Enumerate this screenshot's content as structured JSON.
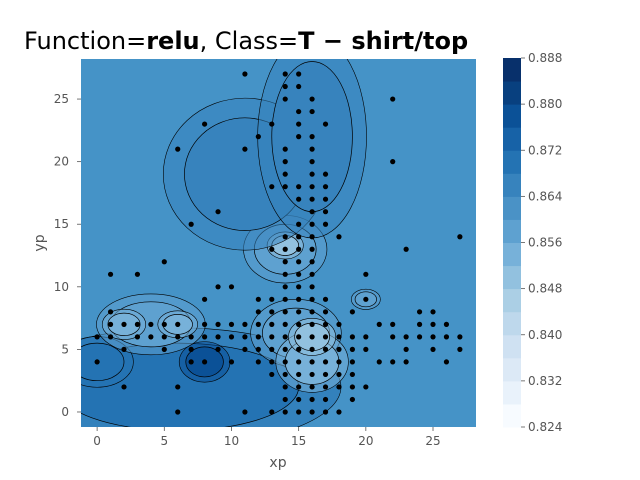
{
  "chart_data": {
    "type": "scatter",
    "title_prefix": "Function=",
    "title_function": "relu",
    "title_mid": ", Class=",
    "title_class": "T − shirt/top",
    "xlabel": "xp",
    "ylabel": "yp",
    "xlim": [
      -1.2,
      28.2
    ],
    "ylim": [
      28.2,
      -1.2
    ],
    "y_inverted": true,
    "x_ticks": [
      0,
      5,
      10,
      15,
      20,
      25
    ],
    "y_ticks": [
      0,
      5,
      10,
      15,
      20,
      25
    ],
    "grid": false,
    "background_fill": "#4593c7",
    "colorbar": {
      "min": 0.824,
      "max": 0.888,
      "ticks": [
        "0.824",
        "0.832",
        "0.840",
        "0.848",
        "0.856",
        "0.864",
        "0.872",
        "0.880",
        "0.888"
      ],
      "levels": [
        "#f7fbff",
        "#e9f2fb",
        "#dce9f6",
        "#cfe1f2",
        "#bed8ec",
        "#abcfe5",
        "#92c1df",
        "#77b1d9",
        "#5ea1d0",
        "#4a92c6",
        "#3783bd",
        "#2473b3",
        "#1762a7",
        "#0b5197",
        "#08407f",
        "#08306b"
      ]
    },
    "regions": [
      {
        "cx": 6,
        "cy": 2,
        "rx": 9,
        "ry": 3.5,
        "level": 11
      },
      {
        "cx": 8,
        "cy": 4,
        "rx": 1.4,
        "ry": 1.2,
        "level": 13
      },
      {
        "cx": 0,
        "cy": 4,
        "rx": 2,
        "ry": 1.5,
        "level": 11
      },
      {
        "cx": 14.8,
        "cy": 6.3,
        "rx": 2.5,
        "ry": 2,
        "level": 8
      },
      {
        "cx": 16,
        "cy": 4,
        "rx": 2,
        "ry": 1.8,
        "level": 7
      },
      {
        "cx": 16,
        "cy": 6,
        "rx": 1.3,
        "ry": 1.1,
        "level": 6
      },
      {
        "cx": 14,
        "cy": 13,
        "rx": 2.3,
        "ry": 2,
        "level": 8
      },
      {
        "cx": 14,
        "cy": 13.3,
        "rx": 1,
        "ry": 0.8,
        "level": 6
      },
      {
        "cx": 4,
        "cy": 7,
        "rx": 3,
        "ry": 1.8,
        "level": 8
      },
      {
        "cx": 6,
        "cy": 7,
        "rx": 1.1,
        "ry": 0.8,
        "level": 7
      },
      {
        "cx": 2,
        "cy": 7,
        "rx": 1.2,
        "ry": 0.9,
        "level": 7
      },
      {
        "cx": 20,
        "cy": 9,
        "rx": 0.8,
        "ry": 0.6,
        "level": 8
      },
      {
        "cx": 11,
        "cy": 19,
        "rx": 4.5,
        "ry": 4.5,
        "level": 10
      },
      {
        "cx": 16,
        "cy": 22,
        "rx": 3,
        "ry": 6,
        "level": 10
      }
    ],
    "points": [
      [
        6,
        0
      ],
      [
        11,
        0
      ],
      [
        13,
        0
      ],
      [
        14,
        0
      ],
      [
        15,
        0
      ],
      [
        16,
        0
      ],
      [
        17,
        0
      ],
      [
        18,
        0
      ],
      [
        14,
        1
      ],
      [
        15,
        1
      ],
      [
        16,
        1
      ],
      [
        17,
        1
      ],
      [
        19,
        1
      ],
      [
        2,
        2
      ],
      [
        6,
        2
      ],
      [
        14,
        2
      ],
      [
        15,
        2
      ],
      [
        16,
        2
      ],
      [
        17,
        2
      ],
      [
        18,
        2
      ],
      [
        19,
        2
      ],
      [
        20,
        2
      ],
      [
        13,
        3
      ],
      [
        14,
        3
      ],
      [
        15,
        3
      ],
      [
        16,
        3
      ],
      [
        17,
        3
      ],
      [
        18,
        3
      ],
      [
        19,
        3
      ],
      [
        0,
        4
      ],
      [
        7,
        4
      ],
      [
        8,
        4
      ],
      [
        10,
        4
      ],
      [
        12,
        4
      ],
      [
        13,
        4
      ],
      [
        14,
        4
      ],
      [
        15,
        4
      ],
      [
        16,
        4
      ],
      [
        17,
        4
      ],
      [
        18,
        4
      ],
      [
        19,
        4
      ],
      [
        21,
        4
      ],
      [
        22,
        4
      ],
      [
        23,
        4
      ],
      [
        26,
        4
      ],
      [
        2,
        5
      ],
      [
        5,
        5
      ],
      [
        7,
        5
      ],
      [
        9,
        5
      ],
      [
        11,
        5
      ],
      [
        12,
        5
      ],
      [
        13,
        5
      ],
      [
        14,
        5
      ],
      [
        15,
        5
      ],
      [
        16,
        5
      ],
      [
        17,
        5
      ],
      [
        18,
        5
      ],
      [
        19,
        5
      ],
      [
        20,
        5
      ],
      [
        23,
        5
      ],
      [
        25,
        5
      ],
      [
        27,
        5
      ],
      [
        0,
        6
      ],
      [
        1,
        6
      ],
      [
        3,
        6
      ],
      [
        4,
        6
      ],
      [
        5,
        6
      ],
      [
        6,
        6
      ],
      [
        7,
        6
      ],
      [
        8,
        6
      ],
      [
        9,
        6
      ],
      [
        10,
        6
      ],
      [
        11,
        6
      ],
      [
        12,
        6
      ],
      [
        13,
        6
      ],
      [
        14,
        6
      ],
      [
        15,
        6
      ],
      [
        16,
        6
      ],
      [
        17,
        6
      ],
      [
        18,
        6
      ],
      [
        19,
        6
      ],
      [
        20,
        6
      ],
      [
        22,
        6
      ],
      [
        23,
        6
      ],
      [
        24,
        6
      ],
      [
        25,
        6
      ],
      [
        26,
        6
      ],
      [
        27,
        6
      ],
      [
        1,
        7
      ],
      [
        2,
        7
      ],
      [
        3,
        7
      ],
      [
        4,
        7
      ],
      [
        5,
        7
      ],
      [
        6,
        7
      ],
      [
        8,
        7
      ],
      [
        9,
        7
      ],
      [
        10,
        7
      ],
      [
        11,
        7
      ],
      [
        12,
        7
      ],
      [
        13,
        7
      ],
      [
        14,
        7
      ],
      [
        15,
        7
      ],
      [
        16,
        7
      ],
      [
        17,
        7
      ],
      [
        18,
        7
      ],
      [
        21,
        7
      ],
      [
        22,
        7
      ],
      [
        24,
        7
      ],
      [
        25,
        7
      ],
      [
        26,
        7
      ],
      [
        1,
        8
      ],
      [
        12,
        8
      ],
      [
        13,
        8
      ],
      [
        14,
        8
      ],
      [
        15,
        8
      ],
      [
        16,
        8
      ],
      [
        17,
        8
      ],
      [
        19,
        8
      ],
      [
        24,
        8
      ],
      [
        25,
        8
      ],
      [
        8,
        9
      ],
      [
        12,
        9
      ],
      [
        13,
        9
      ],
      [
        14,
        9
      ],
      [
        15,
        9
      ],
      [
        16,
        9
      ],
      [
        17,
        9
      ],
      [
        20,
        9
      ],
      [
        9,
        10
      ],
      [
        10,
        10
      ],
      [
        14,
        10
      ],
      [
        15,
        10
      ],
      [
        16,
        10
      ],
      [
        1,
        11
      ],
      [
        3,
        11
      ],
      [
        14,
        11
      ],
      [
        15,
        11
      ],
      [
        16,
        11
      ],
      [
        20,
        11
      ],
      [
        5,
        12
      ],
      [
        14,
        12
      ],
      [
        15,
        12
      ],
      [
        16,
        12
      ],
      [
        13,
        13
      ],
      [
        14,
        13
      ],
      [
        15,
        13
      ],
      [
        16,
        13
      ],
      [
        23,
        13
      ],
      [
        14,
        14
      ],
      [
        15,
        14
      ],
      [
        16,
        14
      ],
      [
        18,
        14
      ],
      [
        27,
        14
      ],
      [
        7,
        15
      ],
      [
        15,
        15
      ],
      [
        16,
        15
      ],
      [
        17,
        15
      ],
      [
        9,
        16
      ],
      [
        16,
        16
      ],
      [
        17,
        16
      ],
      [
        15,
        17
      ],
      [
        16,
        17
      ],
      [
        17,
        17
      ],
      [
        13,
        18
      ],
      [
        14,
        18
      ],
      [
        15,
        18
      ],
      [
        16,
        18
      ],
      [
        17,
        18
      ],
      [
        14,
        19
      ],
      [
        16,
        19
      ],
      [
        17,
        19
      ],
      [
        14,
        20
      ],
      [
        16,
        20
      ],
      [
        22,
        20
      ],
      [
        6,
        21
      ],
      [
        11,
        21
      ],
      [
        14,
        21
      ],
      [
        16,
        21
      ],
      [
        12,
        22
      ],
      [
        15,
        22
      ],
      [
        16,
        22
      ],
      [
        8,
        23
      ],
      [
        13,
        23
      ],
      [
        15,
        23
      ],
      [
        17,
        23
      ],
      [
        15,
        24
      ],
      [
        16,
        24
      ],
      [
        14,
        25
      ],
      [
        16,
        25
      ],
      [
        22,
        25
      ],
      [
        14,
        26
      ],
      [
        15,
        26
      ],
      [
        11,
        27
      ],
      [
        14,
        27
      ],
      [
        15,
        27
      ]
    ]
  }
}
